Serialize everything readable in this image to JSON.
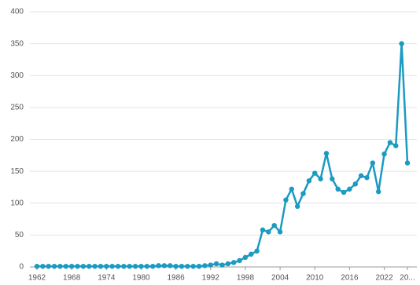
{
  "chart_data": {
    "type": "line",
    "x": [
      1962,
      1963,
      1964,
      1965,
      1966,
      1967,
      1968,
      1969,
      1970,
      1971,
      1972,
      1973,
      1974,
      1975,
      1976,
      1977,
      1978,
      1979,
      1980,
      1981,
      1982,
      1983,
      1984,
      1985,
      1986,
      1987,
      1988,
      1989,
      1990,
      1991,
      1992,
      1993,
      1994,
      1995,
      1996,
      1997,
      1998,
      1999,
      2000,
      2001,
      2002,
      2003,
      2004,
      2005,
      2006,
      2007,
      2008,
      2009,
      2010,
      2011,
      2012,
      2013,
      2014,
      2015,
      2016,
      2017,
      2018,
      2019,
      2020,
      2021,
      2022,
      2023,
      2024,
      2025,
      2026
    ],
    "series": [
      {
        "color": "#1b9ac2",
        "values": [
          1,
          1,
          1,
          1,
          1,
          1,
          1,
          1,
          1,
          1,
          1,
          1,
          1,
          1,
          1,
          1,
          1,
          1,
          1,
          1,
          1,
          2,
          2,
          2,
          1,
          1,
          1,
          1,
          1,
          2,
          3,
          5,
          3,
          5,
          7,
          10,
          15,
          20,
          25,
          58,
          55,
          65,
          55,
          105,
          122,
          95,
          115,
          135,
          147,
          138,
          178,
          138,
          122,
          117,
          122,
          130,
          143,
          140,
          163,
          118,
          177,
          195,
          190,
          350,
          163
        ]
      }
    ],
    "xlim": [
      1962,
      2026
    ],
    "xticks": [
      1962,
      1968,
      1974,
      1980,
      1986,
      1992,
      1998,
      2004,
      2010,
      2016,
      2022,
      {
        "value": 2026,
        "label": "20..."
      }
    ],
    "ylim": [
      0,
      400
    ],
    "yticks": [
      0,
      50,
      100,
      150,
      200,
      250,
      300,
      350,
      400
    ],
    "grid": true
  }
}
